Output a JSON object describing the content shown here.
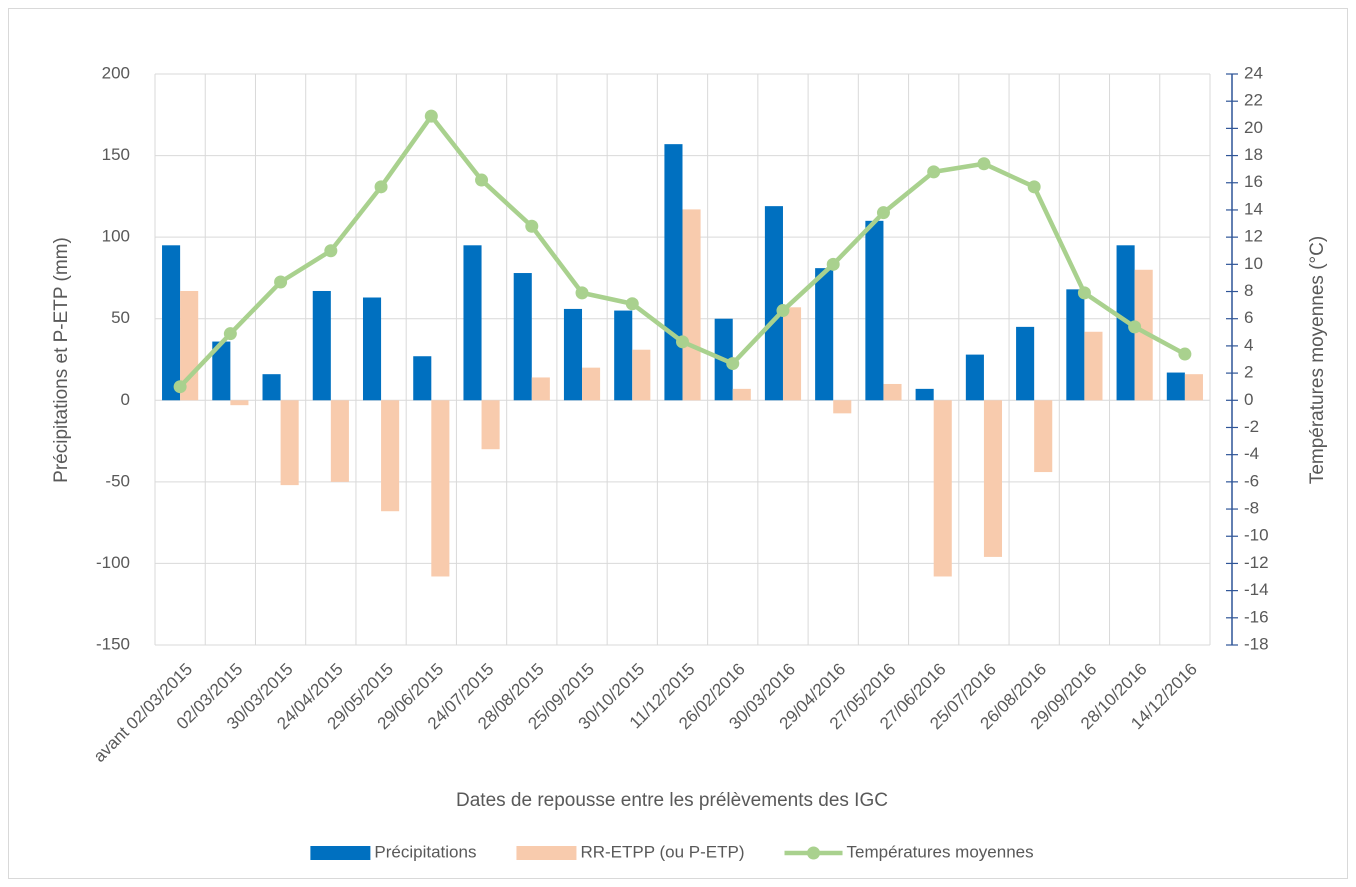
{
  "chart_data": {
    "type": "bar_line",
    "x_label": "Dates de repousse entre les prélèvements des IGC",
    "y_label": "Précipitations et P-ETP (mm)",
    "y2_label": "Températures moyennes (°C)",
    "categories": [
      "avant 02/03/2015",
      "02/03/2015",
      "30/03/2015",
      "24/04/2015",
      "29/05/2015",
      "29/06/2015",
      "24/07/2015",
      "28/08/2015",
      "25/09/2015",
      "30/10/2015",
      "11/12/2015",
      "26/02/2016",
      "30/03/2016",
      "29/04/2016",
      "27/05/2016",
      "27/06/2016",
      "25/07/2016",
      "26/08/2016",
      "29/09/2016",
      "28/10/2016",
      "14/12/2016"
    ],
    "series": [
      {
        "name": "Précipitations",
        "type": "bar",
        "color": "#0070c0",
        "values": [
          95,
          36,
          16,
          67,
          63,
          27,
          95,
          78,
          56,
          55,
          157,
          50,
          119,
          81,
          110,
          7,
          28,
          45,
          68,
          95,
          17
        ]
      },
      {
        "name": "RR-ETPP (ou P-ETP)",
        "type": "bar",
        "color": "#f8cbad",
        "values": [
          67,
          -3,
          -52,
          -50,
          -68,
          -108,
          -30,
          14,
          20,
          31,
          117,
          7,
          57,
          -8,
          10,
          -108,
          -96,
          -44,
          42,
          80,
          16
        ]
      },
      {
        "name": "Températures moyennes",
        "type": "line",
        "axis": "y2",
        "color": "#a9d18e",
        "values": [
          1.0,
          4.9,
          8.7,
          11.0,
          15.7,
          20.9,
          16.2,
          12.8,
          7.9,
          7.1,
          4.3,
          2.7,
          6.6,
          10.0,
          13.8,
          16.8,
          17.4,
          15.7,
          7.9,
          5.4,
          3.4
        ]
      }
    ],
    "ylim": [
      -150,
      200
    ],
    "yticks": [
      -150,
      -100,
      -50,
      0,
      50,
      100,
      150,
      200
    ],
    "y2lim": [
      -18,
      24
    ],
    "y2ticks": [
      -18,
      -16,
      -14,
      -12,
      -10,
      -8,
      -6,
      -4,
      -2,
      0,
      2,
      4,
      6,
      8,
      10,
      12,
      14,
      16,
      18,
      20,
      22,
      24
    ],
    "y2_axis_color": "#2f5597",
    "grid": true,
    "legend": "bottom"
  }
}
